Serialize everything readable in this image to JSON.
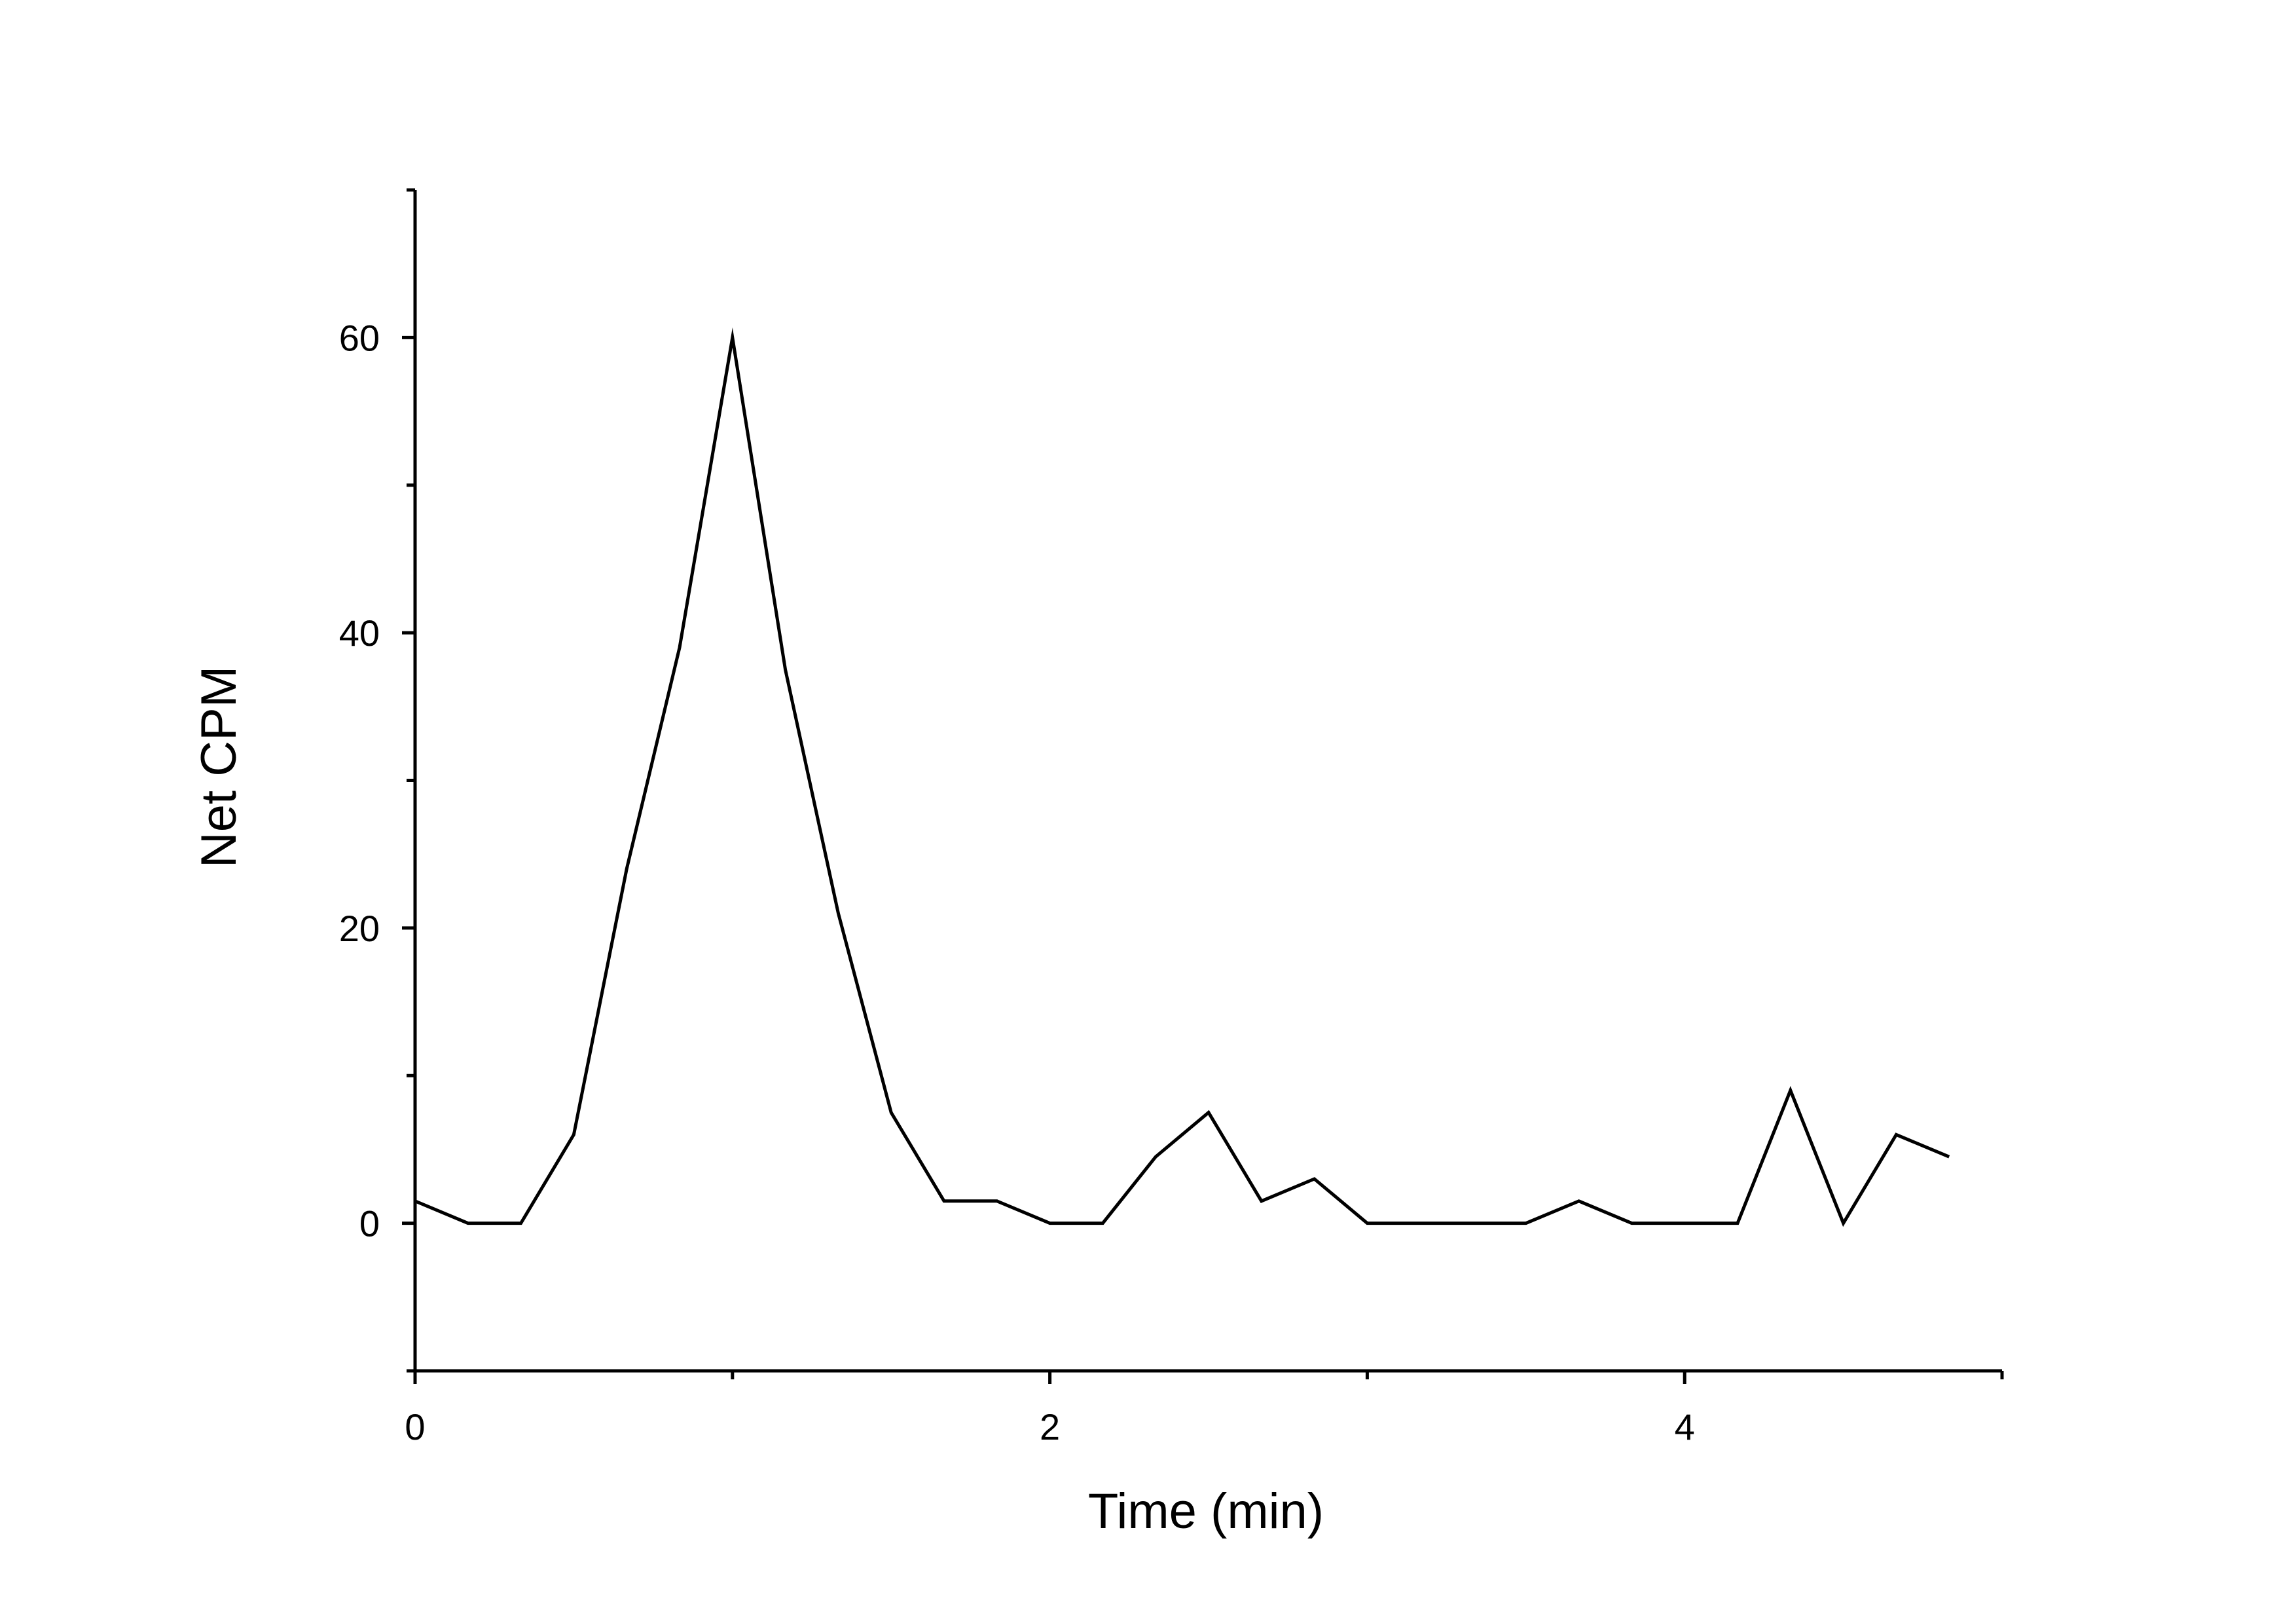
{
  "chart_data": {
    "type": "line",
    "title": "",
    "xlabel": "Time (min)",
    "ylabel": "Net CPM",
    "xlim": [
      0,
      5
    ],
    "ylim": [
      -10,
      70
    ],
    "x_ticks": [
      0,
      2,
      4
    ],
    "x_minor_ticks": [
      1,
      3,
      5
    ],
    "y_ticks": [
      0,
      20,
      40,
      60
    ],
    "y_minor_ticks": [
      -10,
      10,
      30,
      50,
      70
    ],
    "grid": false,
    "legend": "none",
    "line_color": "#000000",
    "series": [
      {
        "x": [
          0,
          0.1667,
          0.3333,
          0.5,
          0.6667,
          0.8333,
          1.0,
          1.1667,
          1.3333,
          1.5,
          1.6667,
          1.8333,
          2.0,
          2.1667,
          2.3333,
          2.5,
          2.6667,
          2.8333,
          3.0,
          3.1667,
          3.3333,
          3.5,
          3.6667,
          3.8333,
          4.0,
          4.1667,
          4.3333,
          4.5,
          4.6667,
          4.8333
        ],
        "y": [
          1.5,
          0,
          0,
          6,
          24,
          39,
          60,
          37.5,
          21,
          7.5,
          1.5,
          1.5,
          0,
          0,
          4.5,
          7.5,
          1.5,
          3,
          0,
          0,
          0,
          0,
          1.5,
          0,
          0,
          0,
          9,
          0,
          6,
          4.5
        ]
      }
    ]
  }
}
